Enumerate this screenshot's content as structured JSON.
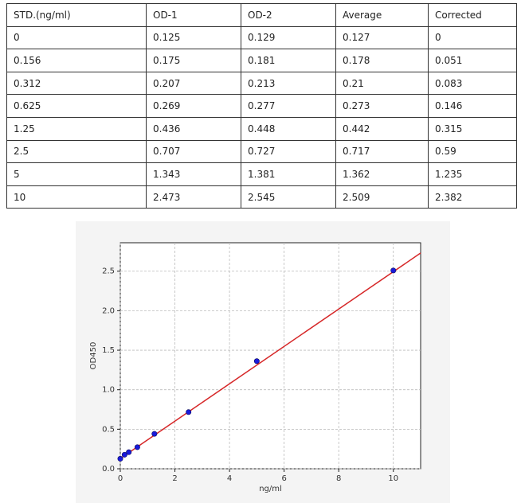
{
  "table": {
    "header": [
      "STD.(ng/ml)",
      "OD-1",
      "OD-2",
      "Average",
      "Corrected"
    ],
    "rows": [
      [
        "0",
        "0.125",
        "0.129",
        "0.127",
        "0"
      ],
      [
        "0.156",
        "0.175",
        "0.181",
        "0.178",
        "0.051"
      ],
      [
        "0.312",
        "0.207",
        "0.213",
        "0.21",
        "0.083"
      ],
      [
        "0.625",
        "0.269",
        "0.277",
        "0.273",
        "0.146"
      ],
      [
        "1.25",
        "0.436",
        "0.448",
        "0.442",
        "0.315"
      ],
      [
        "2.5",
        "0.707",
        "0.727",
        "0.717",
        "0.59"
      ],
      [
        "5",
        "1.343",
        "1.381",
        "1.362",
        "1.235"
      ],
      [
        "10",
        "2.473",
        "2.545",
        "2.509",
        "2.382"
      ]
    ]
  },
  "chart_data": {
    "type": "scatter",
    "xlabel": "ng/ml",
    "ylabel": "OD450",
    "x": [
      0,
      0.156,
      0.312,
      0.625,
      1.25,
      2.5,
      5,
      10
    ],
    "values": [
      0.127,
      0.178,
      0.21,
      0.273,
      0.442,
      0.717,
      1.362,
      2.509
    ],
    "color": "#1a1adb",
    "fit": {
      "x": [
        0,
        11
      ],
      "values": [
        0.13,
        2.73
      ],
      "color": "#d62728"
    },
    "xlim": [
      0,
      11
    ],
    "ylim": [
      0,
      2.86
    ],
    "xticks": [
      0,
      2,
      4,
      6,
      8,
      10
    ],
    "yticks": [
      {
        "value": 0,
        "label": "0.0"
      },
      {
        "value": 0.5,
        "label": "0.5"
      },
      {
        "value": 1,
        "label": "1.0"
      },
      {
        "value": 1.5,
        "label": "1.5"
      },
      {
        "value": 2,
        "label": "2.0"
      },
      {
        "value": 2.5,
        "label": "2.5"
      }
    ],
    "grid": true
  }
}
